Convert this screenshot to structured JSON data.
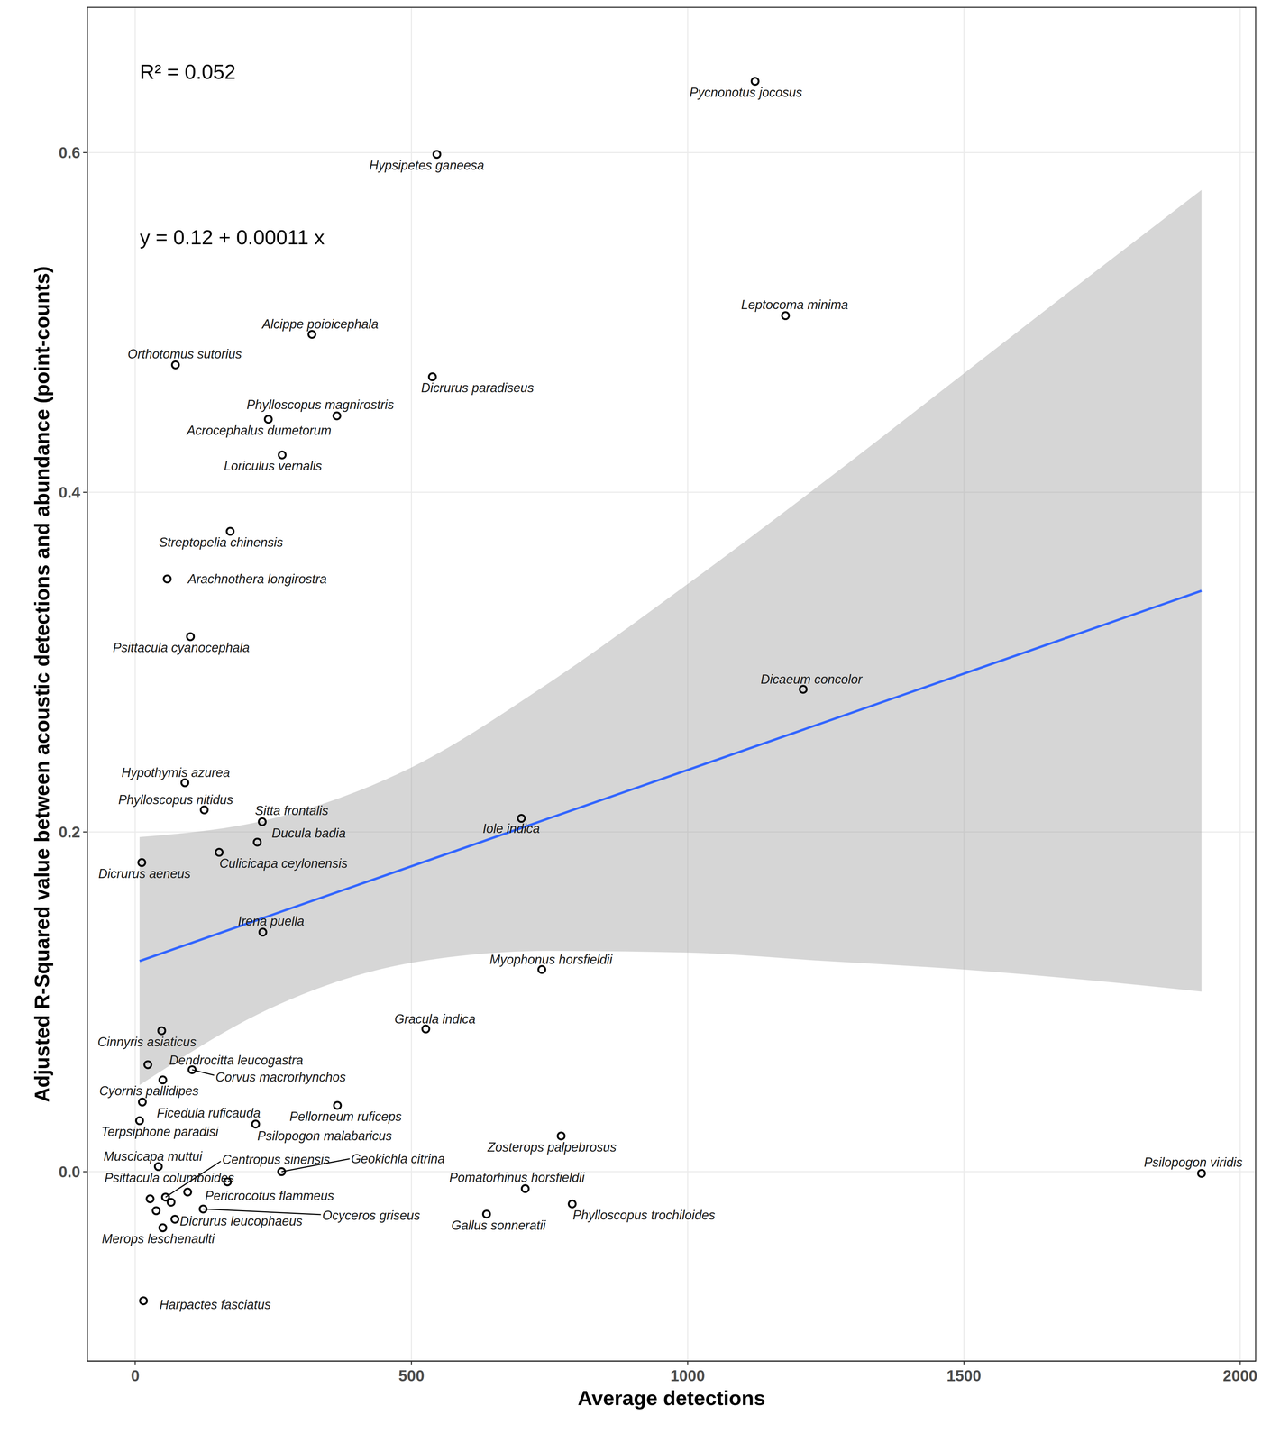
{
  "chart_data": {
    "type": "scatter",
    "x_label": "Average detections",
    "y_label": "Adjusted R-Squared value between acoustic detections and abundance (point-counts)",
    "annotations": [
      "R² = 0.052",
      "y = 0.12 + 0.00011 x"
    ],
    "color": "#000000",
    "marker": "circle",
    "points": [
      {
        "name": "Pycnonotus jocosus",
        "x": 1122,
        "y": 0.642
      },
      {
        "name": "Hypsipetes ganeesa",
        "x": 546,
        "y": 0.599
      },
      {
        "name": "Leptocoma minima",
        "x": 1177,
        "y": 0.504
      },
      {
        "name": "Alcippe poioicephala",
        "x": 320,
        "y": 0.493
      },
      {
        "name": "Orthotomus sutorius",
        "x": 73,
        "y": 0.475
      },
      {
        "name": "Dicrurus paradiseus",
        "x": 538,
        "y": 0.468
      },
      {
        "name": "Phylloscopus magnirostris",
        "x": 365,
        "y": 0.445
      },
      {
        "name": "Acrocephalus dumetorum",
        "x": 241,
        "y": 0.443
      },
      {
        "name": "Loriculus vernalis",
        "x": 266,
        "y": 0.422
      },
      {
        "name": "Streptopelia chinensis",
        "x": 172,
        "y": 0.377
      },
      {
        "name": "Arachnothera longirostra",
        "x": 58,
        "y": 0.349
      },
      {
        "name": "Psittacula cyanocephala",
        "x": 100,
        "y": 0.315
      },
      {
        "name": "Dicaeum concolor",
        "x": 1209,
        "y": 0.284
      },
      {
        "name": "Hypothymis azurea",
        "x": 90,
        "y": 0.229
      },
      {
        "name": "Phylloscopus nitidus",
        "x": 125,
        "y": 0.213
      },
      {
        "name": "Sitta frontalis",
        "x": 230,
        "y": 0.206
      },
      {
        "name": "Iole indica",
        "x": 699,
        "y": 0.208
      },
      {
        "name": "Ducula badia",
        "x": 221,
        "y": 0.194
      },
      {
        "name": "Culicicapa ceylonensis",
        "x": 152,
        "y": 0.188
      },
      {
        "name": "Dicrurus aeneus",
        "x": 12,
        "y": 0.182
      },
      {
        "name": "Irena puella",
        "x": 231,
        "y": 0.141
      },
      {
        "name": "Myophonus horsfieldii",
        "x": 736,
        "y": 0.119
      },
      {
        "name": "Gracula indica",
        "x": 526,
        "y": 0.084
      },
      {
        "name": "Cinnyris asiaticus",
        "x": 48,
        "y": 0.083
      },
      {
        "name": "Dendrocitta leucogastra",
        "x": 23,
        "y": 0.063
      },
      {
        "name": "Corvus macrorhynchos",
        "x": 103,
        "y": 0.06
      },
      {
        "name": "Cyornis pallidipes",
        "x": 50,
        "y": 0.054
      },
      {
        "name": "Pellorneum ruficeps",
        "x": 366,
        "y": 0.039
      },
      {
        "name": "Ficedula ruficauda",
        "x": 13,
        "y": 0.041
      },
      {
        "name": "Terpsiphone paradisi",
        "x": 8,
        "y": 0.03
      },
      {
        "name": "Psilopogon malabaricus",
        "x": 218,
        "y": 0.028
      },
      {
        "name": "Zosterops palpebrosus",
        "x": 771,
        "y": 0.021
      },
      {
        "name": "Muscicapa muttui",
        "x": 42,
        "y": 0.003
      },
      {
        "name": "Geokichla citrina",
        "x": 265,
        "y": 0.0
      },
      {
        "name": "Centropus sinensis",
        "x": 55,
        "y": -0.015
      },
      {
        "name": "Psittacula columboides",
        "x": 27,
        "y": -0.016
      },
      {
        "name": "Pericrocotus flammeus",
        "x": 95,
        "y": -0.012
      },
      {
        "name": "Ocyceros griseus",
        "x": 123,
        "y": -0.022
      },
      {
        "name": "Dicrurus leucophaeus",
        "x": 72,
        "y": -0.028
      },
      {
        "name": "Merops leschenaulti",
        "x": 50,
        "y": -0.033
      },
      {
        "name": "Pomatorhinus horsfieldii",
        "x": 706,
        "y": -0.01
      },
      {
        "name": "Gallus sonneratii",
        "x": 636,
        "y": -0.025
      },
      {
        "name": "Phylloscopus trochiloides",
        "x": 791,
        "y": -0.019
      },
      {
        "name": "Psilopogon viridis",
        "x": 1930,
        "y": -0.001
      },
      {
        "name": "Harpactes fasciatus",
        "x": 15,
        "y": -0.076
      },
      {
        "name": null,
        "x": 65,
        "y": -0.018
      },
      {
        "name": null,
        "x": 38,
        "y": -0.023
      },
      {
        "name": null,
        "x": 167,
        "y": -0.006
      }
    ],
    "fit": {
      "x": [
        8,
        1930
      ],
      "y": [
        0.124,
        0.342
      ],
      "color": "#3366ff"
    },
    "band": {
      "x": [
        8,
        250,
        500,
        750,
        1000,
        1250,
        1500,
        1750,
        1930
      ],
      "lower": [
        0.051,
        0.097,
        0.123,
        0.13,
        0.129,
        0.124,
        0.119,
        0.112,
        0.106
      ],
      "upper": [
        0.197,
        0.208,
        0.238,
        0.288,
        0.346,
        0.407,
        0.47,
        0.533,
        0.578
      ],
      "color": "#999999"
    },
    "xlim": [
      -86.6,
      2028
    ],
    "ylim": [
      -0.1115,
      0.6855
    ],
    "xticks": [
      0,
      500,
      1000,
      1500,
      2000
    ],
    "yticks": [
      {
        "value": 0,
        "label": "0.0"
      },
      0.2,
      0.4,
      0.6
    ],
    "grid": true
  }
}
